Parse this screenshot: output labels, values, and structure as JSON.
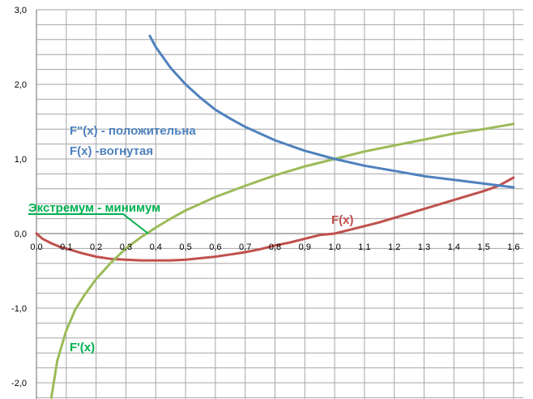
{
  "chart_data": {
    "type": "line",
    "x_ticks": [
      "0,0",
      "0,1",
      "0,2",
      "0,3",
      "0,4",
      "0,5",
      "0,6",
      "0,7",
      "0,8",
      "0,9",
      "1,0",
      "1,1",
      "1,2",
      "1,3",
      "1,4",
      "1,5",
      "1,6"
    ],
    "y_ticks": [
      "3,0",
      "2,0",
      "1,0",
      "0,0",
      "-1,0",
      "-2,0"
    ],
    "xlim": [
      0,
      1.6
    ],
    "ylim": [
      -2.2,
      3.0
    ],
    "grid": true,
    "series": [
      {
        "name": "F(x)",
        "color": "#c0504d",
        "x": [
          0.0,
          0.02,
          0.05,
          0.08,
          0.1,
          0.15,
          0.2,
          0.25,
          0.3,
          0.35,
          0.4,
          0.45,
          0.5,
          0.55,
          0.6,
          0.65,
          0.7,
          0.75,
          0.8,
          0.85,
          0.9,
          0.95,
          1.0,
          1.05,
          1.1,
          1.15,
          1.2,
          1.25,
          1.3,
          1.35,
          1.4,
          1.45,
          1.5,
          1.55,
          1.6
        ],
        "y": [
          0.0,
          -0.07,
          -0.13,
          -0.18,
          -0.2,
          -0.26,
          -0.31,
          -0.34,
          -0.35,
          -0.36,
          -0.36,
          -0.36,
          -0.35,
          -0.33,
          -0.31,
          -0.28,
          -0.25,
          -0.21,
          -0.16,
          -0.12,
          -0.07,
          -0.02,
          0.0,
          0.05,
          0.1,
          0.15,
          0.21,
          0.27,
          0.33,
          0.39,
          0.45,
          0.51,
          0.57,
          0.64,
          0.75
        ]
      },
      {
        "name": "F'(x)",
        "color": "#9bbb59",
        "x": [
          0.05,
          0.07,
          0.1,
          0.13,
          0.16,
          0.2,
          0.25,
          0.3,
          0.35,
          0.37,
          0.4,
          0.45,
          0.5,
          0.55,
          0.6,
          0.7,
          0.8,
          0.9,
          1.0,
          1.1,
          1.2,
          1.3,
          1.4,
          1.5,
          1.6
        ],
        "y": [
          -2.2,
          -1.7,
          -1.3,
          -1.02,
          -0.83,
          -0.61,
          -0.39,
          -0.2,
          -0.05,
          0.0,
          0.08,
          0.2,
          0.31,
          0.4,
          0.49,
          0.64,
          0.78,
          0.9,
          1.0,
          1.1,
          1.18,
          1.26,
          1.34,
          1.4,
          1.47
        ]
      },
      {
        "name": "F''(x)",
        "color": "#4f81bd",
        "x": [
          0.38,
          0.4,
          0.45,
          0.5,
          0.55,
          0.6,
          0.65,
          0.7,
          0.8,
          0.9,
          1.0,
          1.1,
          1.2,
          1.3,
          1.4,
          1.5,
          1.6
        ],
        "y": [
          2.65,
          2.5,
          2.22,
          2.0,
          1.82,
          1.66,
          1.54,
          1.43,
          1.25,
          1.11,
          1.0,
          0.91,
          0.84,
          0.77,
          0.72,
          0.67,
          0.62
        ]
      }
    ]
  },
  "annotations": {
    "fpp_positive": "F\"(x) - положительна",
    "f_concave": "F(x) -вогнутая",
    "extremum": "Экстремум - минимум",
    "f_label": "F(x)",
    "fprime_label": "F'(x)"
  },
  "colors": {
    "blue": "#4f81bd",
    "red": "#c0504d",
    "green": "#9bbb59",
    "annotation_green": "#00b050",
    "grid": "#a6a6a6",
    "axis": "#868686",
    "tick_text": "#000000"
  }
}
